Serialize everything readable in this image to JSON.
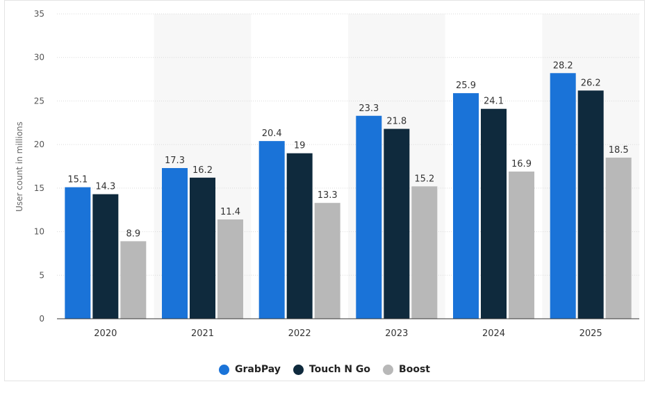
{
  "chart_data": {
    "type": "bar",
    "title": "",
    "xlabel": "",
    "ylabel": "User count in millions",
    "categories": [
      "2020",
      "2021",
      "2022",
      "2023",
      "2024",
      "2025"
    ],
    "ylim": [
      0,
      35
    ],
    "yticks": [
      0,
      5,
      10,
      15,
      20,
      25,
      30,
      35
    ],
    "grid": true,
    "legend_position": "bottom-center",
    "series": [
      {
        "name": "GrabPay",
        "color": "#1a73d8",
        "values": [
          15.1,
          17.3,
          20.4,
          23.3,
          25.9,
          28.2
        ],
        "labels": [
          "15.1",
          "17.3",
          "20.4",
          "23.3",
          "25.9",
          "28.2"
        ]
      },
      {
        "name": "Touch N Go",
        "color": "#0f2a3d",
        "values": [
          14.3,
          16.2,
          19,
          21.8,
          24.1,
          26.2
        ],
        "labels": [
          "14.3",
          "16.2",
          "19",
          "21.8",
          "24.1",
          "26.2"
        ]
      },
      {
        "name": "Boost",
        "color": "#b8b8b8",
        "values": [
          8.9,
          11.4,
          13.3,
          15.2,
          16.9,
          18.5
        ],
        "labels": [
          "8.9",
          "11.4",
          "13.3",
          "15.2",
          "16.9",
          "18.5"
        ]
      }
    ]
  }
}
